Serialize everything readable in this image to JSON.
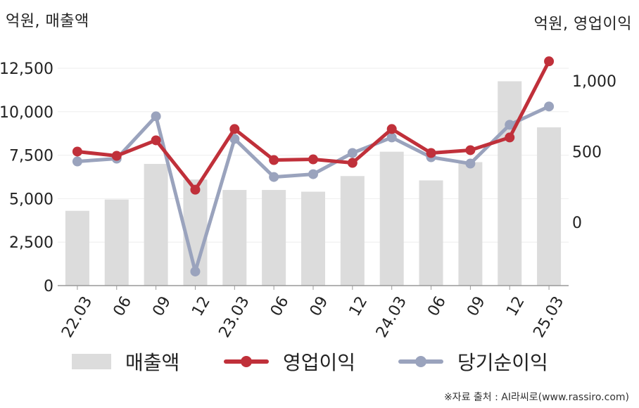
{
  "units": {
    "left": "억원, 매출액",
    "right": "억원, 영업이익"
  },
  "legend": {
    "bar": "매출액",
    "op": "영업이익",
    "net": "당기순이익"
  },
  "source": "※자료 출처 : AI라씨로(www.rassiro.com)",
  "colors": {
    "bar": "#dcdcdc",
    "op": "#c0303a",
    "net": "#9aa3bd",
    "axis": "#999999",
    "grid": "#eeeeee"
  },
  "chart_data": {
    "type": "bar",
    "categories": [
      "22.03",
      "06",
      "09",
      "12",
      "23.03",
      "06",
      "09",
      "12",
      "24.03",
      "06",
      "09",
      "12",
      "25.03"
    ],
    "left_axis": {
      "ticks": [
        "0",
        "2,500",
        "5,000",
        "7,500",
        "10,000",
        "12,500"
      ],
      "range": [
        0,
        12500
      ]
    },
    "right_axis": {
      "ticks": [
        "0",
        "500",
        "1,000"
      ],
      "range": [
        -450,
        1400
      ]
    },
    "series": [
      {
        "name": "매출액",
        "type": "bar",
        "axis": "left",
        "values": [
          4300,
          4950,
          7000,
          6100,
          5500,
          5500,
          5400,
          6300,
          7700,
          6050,
          7100,
          11750,
          9100
        ]
      },
      {
        "name": "영업이익",
        "type": "line",
        "axis": "right",
        "values": [
          500,
          470,
          580,
          230,
          660,
          440,
          445,
          420,
          660,
          490,
          510,
          600,
          1140
        ]
      },
      {
        "name": "당기순이익",
        "type": "line",
        "axis": "right",
        "values": [
          430,
          450,
          750,
          -350,
          590,
          320,
          340,
          490,
          600,
          460,
          415,
          690,
          820
        ]
      }
    ]
  }
}
